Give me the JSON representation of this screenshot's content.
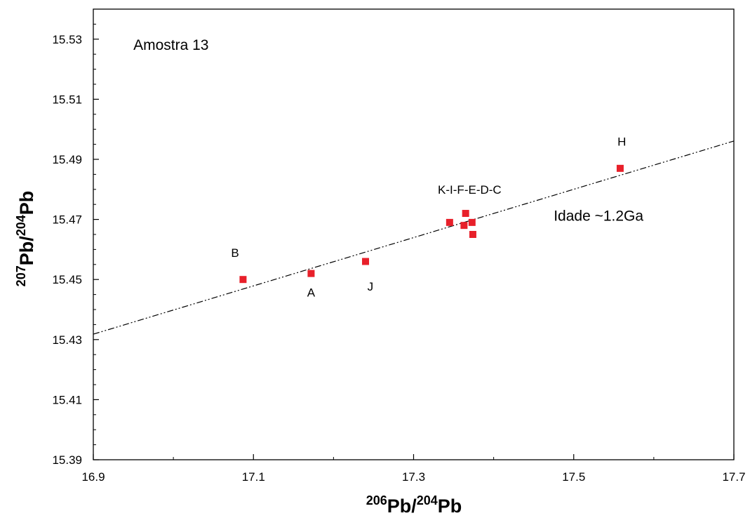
{
  "chart_data": {
    "type": "scatter",
    "title": "",
    "xlabel": {
      "sup1": "206",
      "base1": "Pb/",
      "sup2": "204",
      "base2": "Pb"
    },
    "ylabel": {
      "sup1": "207",
      "base1": "Pb/",
      "sup2": "204",
      "base2": "Pb"
    },
    "xlim": [
      16.9,
      17.7
    ],
    "ylim": [
      15.39,
      15.54
    ],
    "xticks": [
      "16.9",
      "17.1",
      "17.3",
      "17.5",
      "17.7"
    ],
    "yticks": [
      "15.39",
      "15.41",
      "15.43",
      "15.45",
      "15.47",
      "15.49",
      "15.51",
      "15.53"
    ],
    "grid": false,
    "marker_color": "#e8202a",
    "points": [
      {
        "x": 17.087,
        "y": 15.45
      },
      {
        "x": 17.172,
        "y": 15.452
      },
      {
        "x": 17.24,
        "y": 15.456
      },
      {
        "x": 17.345,
        "y": 15.469
      },
      {
        "x": 17.363,
        "y": 15.468
      },
      {
        "x": 17.365,
        "y": 15.472
      },
      {
        "x": 17.373,
        "y": 15.469
      },
      {
        "x": 17.374,
        "y": 15.465
      },
      {
        "x": 17.558,
        "y": 15.487
      }
    ],
    "point_labels": [
      {
        "text": "B",
        "x": 17.077,
        "y": 15.4575
      },
      {
        "text": "A",
        "x": 17.172,
        "y": 15.4443
      },
      {
        "text": "J",
        "x": 17.246,
        "y": 15.4463
      },
      {
        "text": "K-I-F-E-D-C",
        "x": 17.37,
        "y": 15.4785
      },
      {
        "text": "H",
        "x": 17.56,
        "y": 15.4945
      }
    ],
    "regression_line": {
      "x": [
        16.9,
        17.7
      ],
      "y": [
        15.4318,
        15.4961
      ],
      "style": "dash-dot-dot"
    },
    "annotations": [
      {
        "text": "Amostra 13",
        "x": 16.95,
        "y": 15.5265
      },
      {
        "text": "Idade ~1.2Ga",
        "x": 17.475,
        "y": 15.4695
      }
    ]
  }
}
